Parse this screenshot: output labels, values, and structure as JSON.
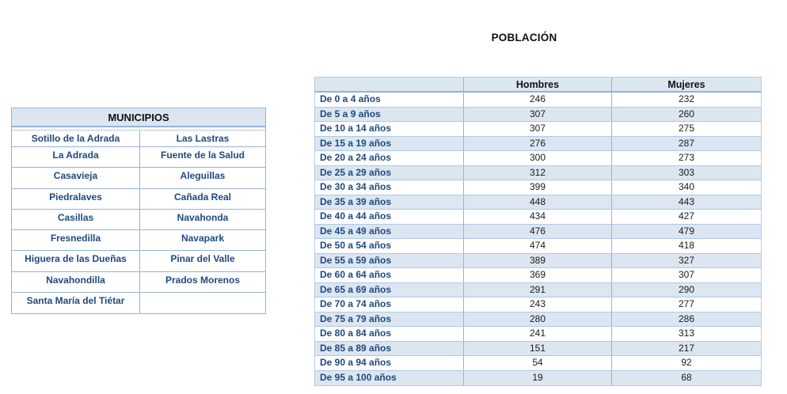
{
  "colors": {
    "band_blue": "#DCE6F1",
    "border_light": "#B8CCE4",
    "border_medium": "#95B3D7",
    "text_blue": "#1F497D",
    "text_black": "#111111"
  },
  "municipios_table": {
    "title": "MUNICIPIOS",
    "rows": [
      [
        "Sotillo de la Adrada",
        "Las Lastras"
      ],
      [
        "La Adrada",
        "Fuente de la Salud"
      ],
      [
        "Casavieja",
        "Aleguillas"
      ],
      [
        "Piedralaves",
        "Cañada Real"
      ],
      [
        "Casillas",
        "Navahonda"
      ],
      [
        "Fresnedilla",
        "Navapark"
      ],
      [
        "Higuera de las Dueñas",
        "Pinar del Valle"
      ],
      [
        "Navahondilla",
        "Prados Morenos"
      ],
      [
        "Santa María del Tiétar",
        ""
      ]
    ]
  },
  "poblacion_table": {
    "title": "POBLACIÓN",
    "columns": [
      "",
      "Hombres",
      "Mujeres"
    ],
    "rows": [
      {
        "label": "De 0 a 4 años",
        "hombres": "246",
        "mujeres": "232"
      },
      {
        "label": "De 5 a 9 años",
        "hombres": "307",
        "mujeres": "260"
      },
      {
        "label": "De 10 a 14 años",
        "hombres": "307",
        "mujeres": "275"
      },
      {
        "label": "De 15 a 19 años",
        "hombres": "276",
        "mujeres": "287"
      },
      {
        "label": "De 20 a 24 años",
        "hombres": "300",
        "mujeres": "273"
      },
      {
        "label": "De 25 a 29 años",
        "hombres": "312",
        "mujeres": "303"
      },
      {
        "label": "De 30 a 34 años",
        "hombres": "399",
        "mujeres": "340"
      },
      {
        "label": "De 35 a 39 años",
        "hombres": "448",
        "mujeres": "443"
      },
      {
        "label": "De 40 a 44 años",
        "hombres": "434",
        "mujeres": "427"
      },
      {
        "label": "De 45 a 49 años",
        "hombres": "476",
        "mujeres": "479"
      },
      {
        "label": "De 50 a 54 años",
        "hombres": "474",
        "mujeres": "418"
      },
      {
        "label": "De 55 a 59 años",
        "hombres": "389",
        "mujeres": "327"
      },
      {
        "label": "De 60 a 64 años",
        "hombres": "369",
        "mujeres": "307"
      },
      {
        "label": "De 65 a 69 años",
        "hombres": "291",
        "mujeres": "290"
      },
      {
        "label": "De 70 a 74 años",
        "hombres": "243",
        "mujeres": "277"
      },
      {
        "label": "De 75 a 79 años",
        "hombres": "280",
        "mujeres": "286"
      },
      {
        "label": "De 80 a 84 años",
        "hombres": "241",
        "mujeres": "313"
      },
      {
        "label": "De 85 a 89 años",
        "hombres": "151",
        "mujeres": "217"
      },
      {
        "label": "De 90 a 94 años",
        "hombres": "54",
        "mujeres": "92"
      },
      {
        "label": "De 95 a 100 años",
        "hombres": "19",
        "mujeres": "68"
      }
    ]
  }
}
